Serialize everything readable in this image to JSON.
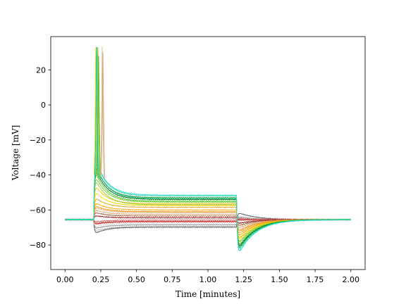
{
  "chart_data": {
    "type": "line",
    "title": "",
    "xlabel": "Time [minutes]",
    "ylabel": "Voltage [mV]",
    "xlim": [
      -0.1,
      2.1
    ],
    "ylim": [
      -94,
      39
    ],
    "x_ticks": [
      "0.00",
      "0.25",
      "0.50",
      "0.75",
      "1.00",
      "1.25",
      "1.50",
      "1.75",
      "2.00"
    ],
    "y_ticks": [
      "−80",
      "−60",
      "−40",
      "−20",
      "0",
      "20"
    ],
    "x_tick_values": [
      0,
      0.25,
      0.5,
      0.75,
      1.0,
      1.25,
      1.5,
      1.75,
      2.0
    ],
    "y_tick_values": [
      -80,
      -60,
      -40,
      -20,
      0,
      20
    ],
    "grid": false,
    "legend": "none",
    "baseline_mV": -65.5,
    "current_step_on_min": 0.2,
    "current_step_off_min": 1.2,
    "series": [
      {
        "color": "#f5f5f5",
        "steady_mV": -70.5,
        "peak_mV": -73.5,
        "rebound_mV": -63
      },
      {
        "color": "#bdbdbd",
        "steady_mV": -69.5,
        "peak_mV": -72.5,
        "rebound_mV": -63.5
      },
      {
        "color": "#888888",
        "steady_mV": -68.5,
        "peak_mV": -71,
        "rebound_mV": -64
      },
      {
        "color": "#555555",
        "steady_mV": -69.8,
        "peak_mV": -74,
        "rebound_mV": -61
      },
      {
        "color": "#d8d8d8",
        "steady_mV": -67.5,
        "peak_mV": -70,
        "rebound_mV": -64.5
      },
      {
        "color": "#b22222",
        "steady_mV": -66.5,
        "peak_mV": -68,
        "rebound_mV": -65
      },
      {
        "color": "#cd5c5c",
        "steady_mV": -65.8,
        "peak_mV": -67,
        "rebound_mV": -66
      },
      {
        "color": "#e05050",
        "steady_mV": -66.8,
        "peak_mV": -68.5,
        "rebound_mV": -65.5
      },
      {
        "color": "#8b0000",
        "steady_mV": -64.5,
        "peak_mV": -63,
        "rebound_mV": -68
      },
      {
        "color": "#a0522d",
        "steady_mV": -63.5,
        "peak_mV": -61,
        "rebound_mV": -69.5
      },
      {
        "color": "#d2a679",
        "steady_mV": -62.5,
        "peak_mV": -59.5,
        "rebound_mV": -71
      },
      {
        "color": "#deb887",
        "steady_mV": -61.5,
        "peak_mV": -58,
        "rebound_mV": -72.5
      },
      {
        "color": "#ff8c00",
        "steady_mV": -61,
        "peak_mV": -57,
        "rebound_mV": -73.5
      },
      {
        "color": "#ffa500",
        "steady_mV": -60,
        "peak_mV": -55,
        "rebound_mV": -75
      },
      {
        "color": "#daa520",
        "steady_mV": -58.5,
        "peak_mV": -52,
        "rebound_mV": -76.5
      },
      {
        "color": "#ffd700",
        "steady_mV": -57.5,
        "peak_mV": -48,
        "rebound_mV": -78
      },
      {
        "color": "#e6c200",
        "steady_mV": -56.5,
        "peak_mV": -44,
        "rebound_mV": -79
      },
      {
        "color": "#9acd32",
        "steady_mV": -57,
        "peak_mV": -40,
        "rebound_mV": -80.5
      },
      {
        "color": "#7cc520",
        "steady_mV": -55.5,
        "peak_mV": -38,
        "rebound_mV": -81.5
      },
      {
        "color": "#32cd32",
        "steady_mV": -55,
        "peak_mV": -35,
        "rebound_mV": -83
      },
      {
        "color": "#006400",
        "steady_mV": -54,
        "peak_mV": -33,
        "rebound_mV": -84
      },
      {
        "color": "#228b22",
        "steady_mV": -53,
        "peak_mV": -31,
        "rebound_mV": -85
      },
      {
        "color": "#00c78c",
        "steady_mV": -53.5,
        "peak_mV": -30,
        "rebound_mV": -86
      },
      {
        "color": "#20d2aa",
        "steady_mV": -52,
        "peak_mV": -28,
        "rebound_mV": -87.5
      },
      {
        "color": "#40e0d0",
        "steady_mV": -51.5,
        "peak_mV": -27,
        "rebound_mV": -88
      }
    ],
    "spikes": [
      {
        "time_min": 0.215,
        "color": "#ffd700",
        "peak_mV": 33
      },
      {
        "time_min": 0.22,
        "color": "#00c78c",
        "peak_mV": 33
      },
      {
        "time_min": 0.225,
        "color": "#40e0d0",
        "peak_mV": 33
      },
      {
        "time_min": 0.23,
        "color": "#daa520",
        "peak_mV": 33
      },
      {
        "time_min": 0.235,
        "color": "#32cd32",
        "peak_mV": 28
      },
      {
        "time_min": 0.26,
        "color": "#deb887",
        "peak_mV": 33
      },
      {
        "time_min": 0.265,
        "color": "#d2a679",
        "peak_mV": 30
      }
    ]
  }
}
